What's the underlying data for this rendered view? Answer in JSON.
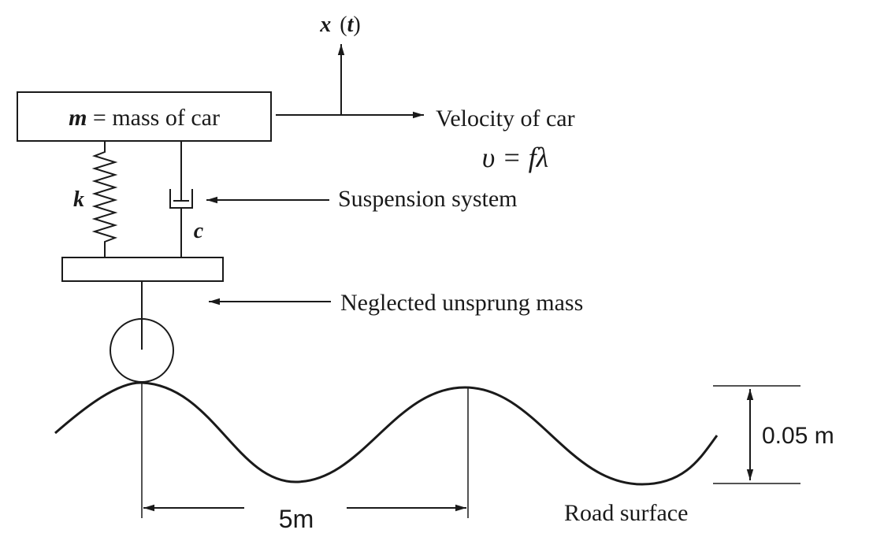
{
  "labels": {
    "axis_var": "x",
    "axis_arg": "t",
    "mass_symbol": "m",
    "mass_text": " = mass of car",
    "velocity_text": "Velocity of car",
    "velocity_formula": "υ = fλ",
    "suspension_text": "Suspension system",
    "unsprung_text": "Neglected unsprung mass",
    "spring_symbol": "k",
    "damper_symbol": "c",
    "amplitude_text": "0.05 m",
    "wavelength_text": "5m",
    "road_text": "Road surface"
  },
  "colors": {
    "ink": "#1a1a1a",
    "background": "#ffffff"
  }
}
